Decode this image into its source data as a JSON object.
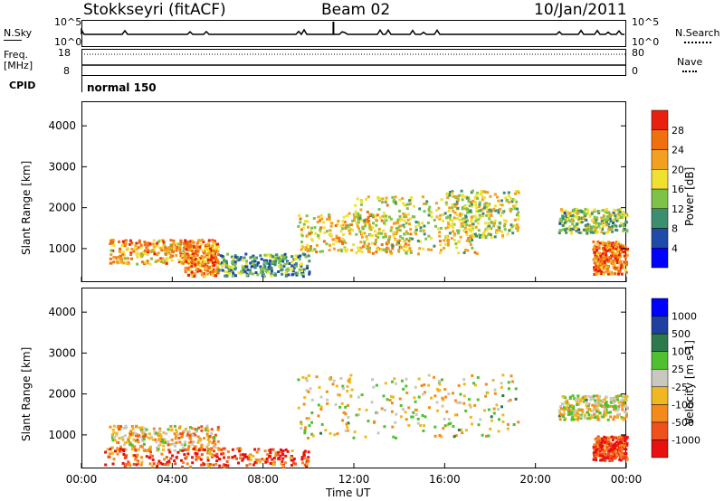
{
  "header": {
    "station": "Stokkseyri (fitACF)",
    "beam": "Beam 02",
    "date": "10/Jan/2011"
  },
  "sky_panel": {
    "left_label": "N.Sky",
    "right_label": "N.Search",
    "left_ticks": [
      "10^5",
      "10^0"
    ],
    "right_ticks": [
      "10^5",
      "10^0"
    ]
  },
  "freq_panel": {
    "left_label_line1": "Freq.",
    "left_label_line2": "[MHz]",
    "right_label": "Nave",
    "left_ticks": [
      "18",
      "8"
    ],
    "right_ticks": [
      "80",
      "0"
    ]
  },
  "cpid": {
    "label": "CPID",
    "value": "normal 150"
  },
  "chart_data": [
    {
      "type": "heatmap",
      "name": "power",
      "ylabel": "Slant Range [km]",
      "ylim": [
        180,
        4600
      ],
      "yticks": [
        "4000",
        "3000",
        "2000",
        "1000"
      ],
      "colorbar_label": "Power [dB]",
      "colorbar_ticks": [
        "28",
        "24",
        "20",
        "16",
        "12",
        "8",
        "4"
      ],
      "colors": [
        "#0000ff",
        "#1f4aa8",
        "#3c8f6e",
        "#7fc24a",
        "#f0e130",
        "#f2a020",
        "#f0700f",
        "#e8200f"
      ],
      "echo_regions": [
        {
          "t0": 1.2,
          "t1": 5.0,
          "r0": 650,
          "r1": 1250,
          "level": 0.7
        },
        {
          "t0": 4.5,
          "t1": 6.0,
          "r0": 350,
          "r1": 1250,
          "level": 0.75
        },
        {
          "t0": 6.0,
          "t1": 10.0,
          "r0": 350,
          "r1": 900,
          "level": 0.35
        },
        {
          "t0": 9.5,
          "t1": 14.5,
          "r0": 950,
          "r1": 1900,
          "level": 0.6
        },
        {
          "t0": 12.0,
          "t1": 17.5,
          "r0": 900,
          "r1": 2300,
          "level": 0.55
        },
        {
          "t0": 16.0,
          "t1": 19.2,
          "r0": 1300,
          "r1": 2450,
          "level": 0.5
        },
        {
          "t0": 21.0,
          "t1": 24.0,
          "r0": 1400,
          "r1": 2000,
          "level": 0.45
        },
        {
          "t0": 22.5,
          "t1": 24.0,
          "r0": 400,
          "r1": 1200,
          "level": 0.8
        }
      ]
    },
    {
      "type": "heatmap",
      "name": "velocity",
      "ylabel": "Slant Range [km]",
      "ylim": [
        180,
        4600
      ],
      "yticks": [
        "4000",
        "3000",
        "2000",
        "1000"
      ],
      "colorbar_label": "Velocity [m s-1]",
      "colorbar_ticks": [
        "1000",
        "500",
        "100",
        "25",
        "-25",
        "-100",
        "-500",
        "-1000"
      ],
      "colors": [
        "#e8100f",
        "#f0501a",
        "#f58a1c",
        "#f0b820",
        "#c8c8c0",
        "#50c030",
        "#2c7a4c",
        "#2040a0",
        "#0000ff"
      ],
      "echo_regions": [
        {
          "t0": 1.2,
          "t1": 6.0,
          "r0": 650,
          "r1": 1250,
          "level": 0.4
        },
        {
          "t0": 1.0,
          "t1": 10.0,
          "r0": 250,
          "r1": 700,
          "level": 0.15
        },
        {
          "t0": 9.5,
          "t1": 19.2,
          "r0": 950,
          "r1": 2500,
          "level": 0.45
        },
        {
          "t0": 21.0,
          "t1": 24.0,
          "r0": 1400,
          "r1": 2000,
          "level": 0.45
        },
        {
          "t0": 22.5,
          "t1": 24.0,
          "r0": 400,
          "r1": 1000,
          "level": 0.1
        }
      ]
    }
  ],
  "x_axis": {
    "xlabel": "Time UT",
    "xlim": [
      0,
      24
    ],
    "ticks": [
      "00:00",
      "04:00",
      "08:00",
      "12:00",
      "16:00",
      "20:00",
      "00:00"
    ]
  }
}
